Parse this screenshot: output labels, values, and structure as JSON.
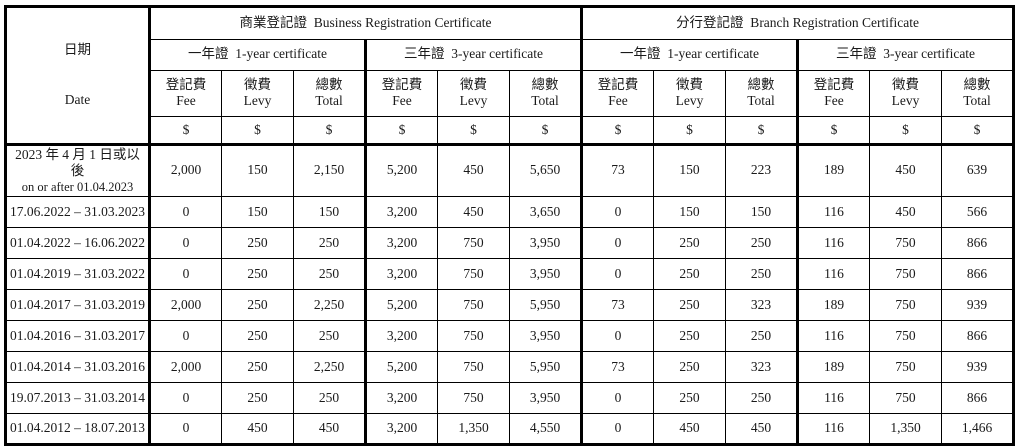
{
  "table": {
    "currency": "$",
    "header": {
      "date_zh": "日期",
      "date_en": "Date",
      "sections": [
        "商業登記證  Business Registration Certificate",
        "分行登記證  Branch Registration Certificate"
      ],
      "subsections": [
        "一年證  1-year certificate",
        "三年證  3-year certificate"
      ],
      "columns": [
        {
          "zh": "登記費",
          "en": "Fee"
        },
        {
          "zh": "徵費",
          "en": "Levy"
        },
        {
          "zh": "總數",
          "en": "Total"
        }
      ]
    },
    "rows": [
      {
        "date_lines": [
          "2023 年 4 月 1 日或以後",
          "on or after 01.04.2023"
        ],
        "values": [
          "2,000",
          "150",
          "2,150",
          "5,200",
          "450",
          "5,650",
          "73",
          "150",
          "223",
          "189",
          "450",
          "639"
        ]
      },
      {
        "date_lines": [
          "17.06.2022 – 31.03.2023"
        ],
        "values": [
          "0",
          "150",
          "150",
          "3,200",
          "450",
          "3,650",
          "0",
          "150",
          "150",
          "116",
          "450",
          "566"
        ]
      },
      {
        "date_lines": [
          "01.04.2022 – 16.06.2022"
        ],
        "values": [
          "0",
          "250",
          "250",
          "3,200",
          "750",
          "3,950",
          "0",
          "250",
          "250",
          "116",
          "750",
          "866"
        ]
      },
      {
        "date_lines": [
          "01.04.2019 – 31.03.2022"
        ],
        "values": [
          "0",
          "250",
          "250",
          "3,200",
          "750",
          "3,950",
          "0",
          "250",
          "250",
          "116",
          "750",
          "866"
        ]
      },
      {
        "date_lines": [
          "01.04.2017 – 31.03.2019"
        ],
        "values": [
          "2,000",
          "250",
          "2,250",
          "5,200",
          "750",
          "5,950",
          "73",
          "250",
          "323",
          "189",
          "750",
          "939"
        ]
      },
      {
        "date_lines": [
          "01.04.2016 – 31.03.2017"
        ],
        "values": [
          "0",
          "250",
          "250",
          "3,200",
          "750",
          "3,950",
          "0",
          "250",
          "250",
          "116",
          "750",
          "866"
        ]
      },
      {
        "date_lines": [
          "01.04.2014 – 31.03.2016"
        ],
        "values": [
          "2,000",
          "250",
          "2,250",
          "5,200",
          "750",
          "5,950",
          "73",
          "250",
          "323",
          "189",
          "750",
          "939"
        ]
      },
      {
        "date_lines": [
          "19.07.2013 – 31.03.2014"
        ],
        "values": [
          "0",
          "250",
          "250",
          "3,200",
          "750",
          "3,950",
          "0",
          "250",
          "250",
          "116",
          "750",
          "866"
        ]
      },
      {
        "date_lines": [
          "01.04.2012 – 18.07.2013"
        ],
        "values": [
          "0",
          "450",
          "450",
          "3,200",
          "1,350",
          "4,550",
          "0",
          "450",
          "450",
          "116",
          "1,350",
          "1,466"
        ]
      }
    ]
  }
}
